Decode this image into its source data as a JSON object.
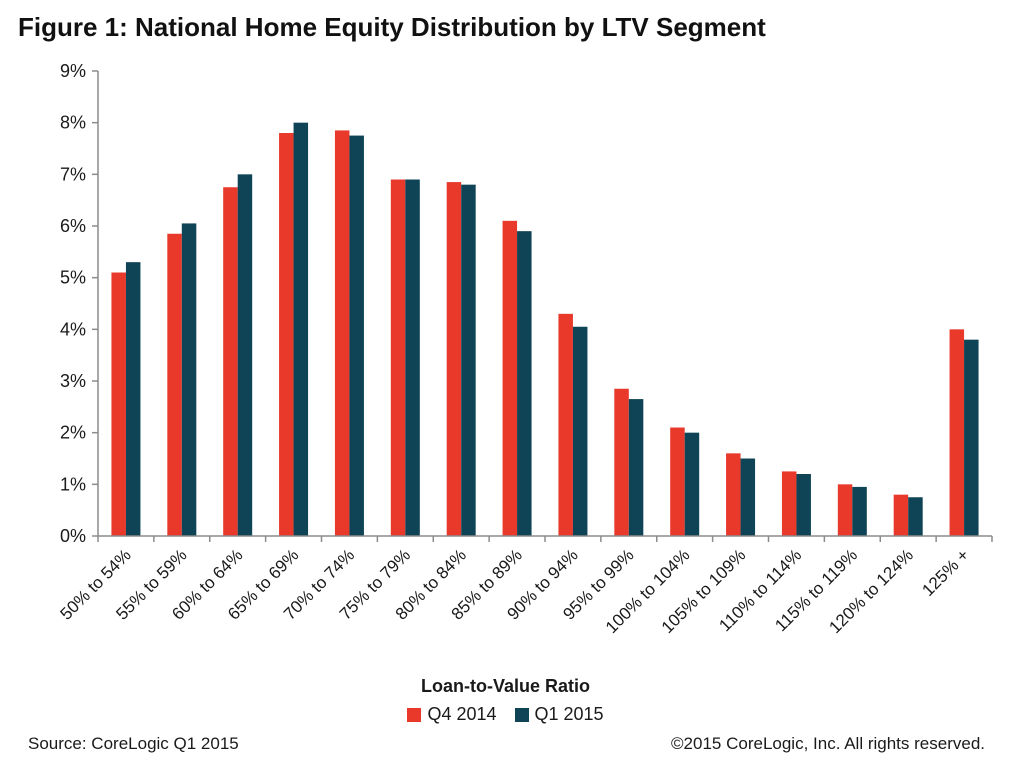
{
  "colors": {
    "q4_2014": "#e8392b",
    "q1_2015": "#0f4457",
    "axis": "#8c8c8c"
  },
  "chart_data": {
    "type": "bar",
    "title": "Figure 1: National Home Equity Distribution by LTV Segment",
    "xlabel": "Loan-to-Value Ratio",
    "ylabel": "",
    "ylim": [
      0,
      9
    ],
    "yticks": [
      "0%",
      "1%",
      "2%",
      "3%",
      "4%",
      "5%",
      "6%",
      "7%",
      "8%",
      "9%"
    ],
    "grid": false,
    "legend_position": "bottom",
    "categories": [
      "50% to 54%",
      "55% to 59%",
      "60% to 64%",
      "65% to 69%",
      "70% to 74%",
      "75% to 79%",
      "80% to 84%",
      "85% to 89%",
      "90% to 94%",
      "95% to 99%",
      "100% to 104%",
      "105% to 109%",
      "110% to 114%",
      "115% to 119%",
      "120% to 124%",
      "125% +"
    ],
    "series": [
      {
        "name": "Q4 2014",
        "values": [
          5.1,
          5.85,
          6.75,
          7.8,
          7.85,
          6.9,
          6.85,
          6.1,
          4.3,
          2.85,
          2.1,
          1.6,
          1.25,
          1.0,
          0.8,
          4.0
        ]
      },
      {
        "name": "Q1 2015",
        "values": [
          5.3,
          6.05,
          7.0,
          8.0,
          7.75,
          6.9,
          6.8,
          5.9,
          4.05,
          2.65,
          2.0,
          1.5,
          1.2,
          0.95,
          0.75,
          3.8
        ]
      }
    ]
  },
  "footer": {
    "source": "Source: CoreLogic Q1 2015",
    "copyright": "©2015 CoreLogic, Inc. All rights reserved."
  }
}
